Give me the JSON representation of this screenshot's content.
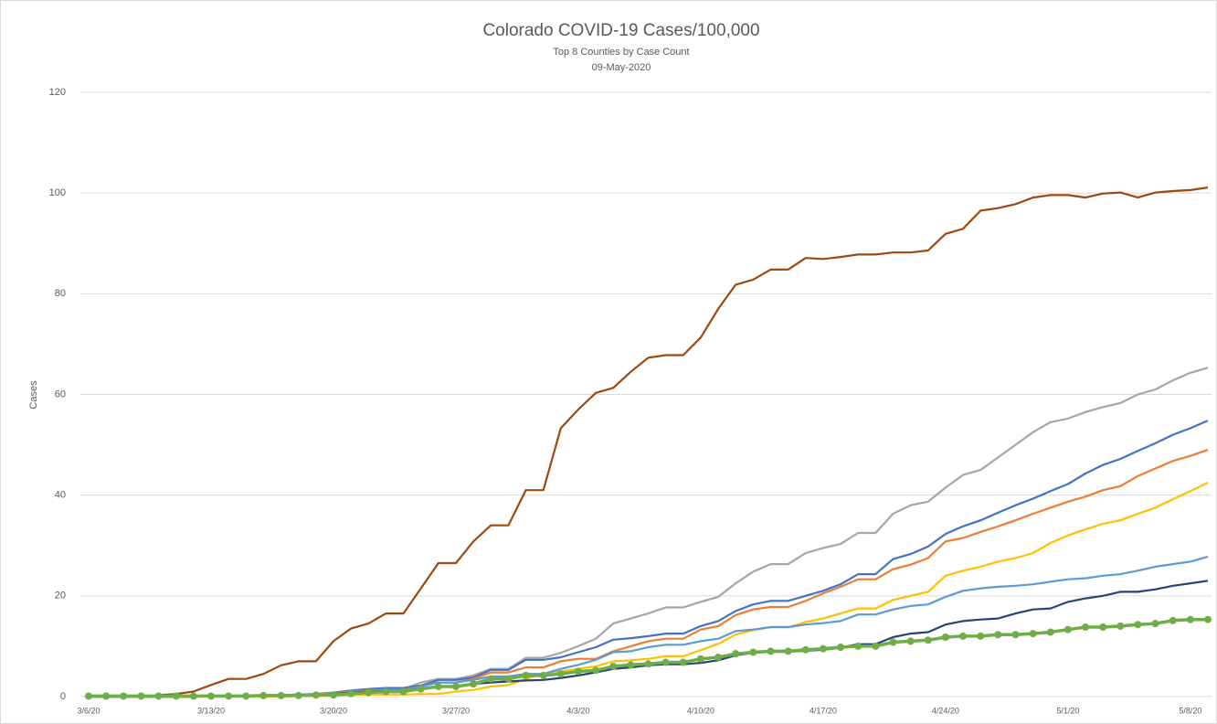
{
  "chart_data": {
    "type": "line",
    "title": "Colorado COVID-19 Cases/100,000",
    "subtitle": "Top 8 Counties by Case Count",
    "date": "09-May-2020",
    "y_label": "Cases",
    "categories": [
      "3/6/20",
      null,
      null,
      null,
      null,
      null,
      null,
      "3/13/20",
      null,
      null,
      null,
      null,
      null,
      null,
      "3/20/20",
      null,
      null,
      null,
      null,
      null,
      null,
      "3/27/20",
      null,
      null,
      null,
      null,
      null,
      null,
      "4/3/20",
      null,
      null,
      null,
      null,
      null,
      null,
      "4/10/20",
      null,
      null,
      null,
      null,
      null,
      null,
      "4/17/20",
      null,
      null,
      null,
      null,
      null,
      null,
      "4/24/20",
      null,
      null,
      null,
      null,
      null,
      null,
      "5/1/20",
      null,
      null,
      null,
      null,
      null,
      null,
      "5/8/20",
      null
    ],
    "ylim": [
      0,
      120
    ],
    "yticks": [
      0,
      20,
      40,
      60,
      80,
      100,
      120
    ],
    "grid": true,
    "series": [
      {
        "color": "#9e480e",
        "values": [
          null,
          null,
          null,
          null,
          0.3,
          0.5,
          1,
          2.3,
          3.5,
          3.5,
          4.5,
          6.2,
          7,
          7,
          11,
          13.5,
          14.5,
          16.5,
          16.5,
          21.5,
          26.5,
          26.5,
          30.8,
          34,
          34,
          41,
          41,
          53.3,
          57,
          60.3,
          61.3,
          64.5,
          67.3,
          67.8,
          67.8,
          71.3,
          77,
          81.8,
          82.8,
          84.8,
          84.8,
          87.1,
          86.9,
          87.3,
          87.8,
          87.8,
          88.2,
          88.2,
          88.6,
          91.9,
          92.9,
          96.5,
          97,
          97.8,
          99.1,
          99.6,
          99.6,
          99.1,
          99.9,
          100.1,
          99.1,
          100.1,
          100.4,
          100.6,
          101.1
        ]
      },
      {
        "color": "#a5a5a5",
        "values": [
          0,
          0,
          0,
          0,
          0,
          0,
          0,
          0.1,
          0.1,
          0.2,
          0.2,
          0.3,
          0.4,
          0.5,
          0.7,
          1,
          1.3,
          1.5,
          1.5,
          2.8,
          3.5,
          3.5,
          4.2,
          5.5,
          5.5,
          7.7,
          7.7,
          8.7,
          10,
          11.5,
          14.5,
          15.5,
          16.5,
          17.7,
          17.7,
          18.8,
          19.8,
          22.5,
          24.8,
          26.3,
          26.3,
          28.5,
          29.5,
          30.3,
          32.5,
          32.5,
          36.3,
          38,
          38.7,
          41.5,
          44,
          45,
          47.5,
          50,
          52.5,
          54.5,
          55.2,
          56.5,
          57.5,
          58.3,
          60,
          61,
          62.8,
          64.3,
          65.3
        ]
      },
      {
        "color": "#4472c4",
        "values": [
          0,
          0,
          0,
          0,
          0,
          0,
          0,
          0.1,
          0.1,
          0.2,
          0.3,
          0.3,
          0.4,
          0.5,
          0.8,
          1.2,
          1.5,
          1.7,
          1.7,
          2.2,
          3.3,
          3.3,
          3.8,
          5.3,
          5.3,
          7.3,
          7.3,
          7.8,
          8.8,
          9.8,
          11.3,
          11.6,
          12,
          12.5,
          12.5,
          14,
          15,
          17,
          18.3,
          19,
          19,
          20,
          21,
          22.3,
          24.3,
          24.3,
          27.3,
          28.3,
          29.8,
          32.3,
          33.8,
          35,
          36.5,
          38,
          39.3,
          40.8,
          42.2,
          44.3,
          46,
          47.2,
          48.8,
          50.3,
          52,
          53.3,
          54.8
        ]
      },
      {
        "color": "#ed7d31",
        "values": [
          0,
          0,
          0,
          0,
          0,
          0,
          0,
          0.1,
          0.1,
          0.1,
          0.2,
          0.2,
          0.3,
          0.4,
          0.7,
          1,
          1.2,
          1.4,
          1.4,
          2,
          2.8,
          2.8,
          3.5,
          4.8,
          4.8,
          5.8,
          5.8,
          7,
          7.5,
          7.5,
          9,
          10,
          11,
          11.5,
          11.5,
          13.3,
          14,
          16.2,
          17.3,
          17.8,
          17.8,
          19,
          20.5,
          21.8,
          23.3,
          23.3,
          25.3,
          26.2,
          27.5,
          30.8,
          31.5,
          32.7,
          33.8,
          35,
          36.3,
          37.5,
          38.7,
          39.7,
          41,
          41.8,
          43.8,
          45.3,
          46.8,
          47.8,
          49
        ]
      },
      {
        "color": "#ffc000",
        "values": [
          0,
          0,
          0,
          0,
          0,
          0,
          0,
          0,
          0,
          0,
          0,
          0,
          0.1,
          0.1,
          0.2,
          0.3,
          0.4,
          0.4,
          0.4,
          0.5,
          0.5,
          1,
          1.3,
          2,
          2.3,
          3.5,
          4.5,
          5,
          5.5,
          6,
          7,
          7.2,
          7.5,
          8,
          8,
          9.2,
          10.5,
          12.3,
          13.2,
          13.8,
          13.8,
          14.8,
          15.5,
          16.5,
          17.5,
          17.5,
          19.2,
          20,
          20.8,
          24,
          25,
          25.8,
          26.8,
          27.5,
          28.5,
          30.5,
          32,
          33.2,
          34.3,
          35,
          36.3,
          37.5,
          39.2,
          40.8,
          42.5
        ]
      },
      {
        "color": "#5b9bd5",
        "values": [
          0,
          0,
          0,
          0,
          0,
          0,
          0,
          0.1,
          0.1,
          0.1,
          0.2,
          0.2,
          0.2,
          0.3,
          0.6,
          0.9,
          1.1,
          1.3,
          1.3,
          2,
          2.8,
          2.8,
          3.3,
          4,
          4,
          4.5,
          4.5,
          5.5,
          6.3,
          7.3,
          8.8,
          9,
          9.8,
          10.3,
          10.3,
          11,
          11.5,
          13,
          13.3,
          13.8,
          13.8,
          14.3,
          14.6,
          15,
          16.3,
          16.3,
          17.3,
          18,
          18.3,
          19.8,
          21,
          21.5,
          21.8,
          22,
          22.3,
          22.8,
          23.3,
          23.5,
          24,
          24.3,
          25,
          25.8,
          26.3,
          26.8,
          27.8
        ]
      },
      {
        "color": "#264478",
        "values": [
          0,
          0,
          0,
          0,
          0,
          0,
          0,
          0.1,
          0.1,
          0.1,
          0.2,
          0.2,
          0.3,
          0.3,
          0.5,
          0.8,
          1,
          1.1,
          1.1,
          1.6,
          2,
          2.1,
          2.5,
          2.8,
          3,
          3.2,
          3.3,
          3.7,
          4.2,
          4.8,
          5.5,
          5.8,
          6.2,
          6.4,
          6.4,
          6.7,
          7.2,
          8.2,
          8.7,
          8.9,
          8.9,
          9.1,
          9.3,
          9.7,
          10.4,
          10.4,
          11.8,
          12.5,
          12.8,
          14.3,
          15,
          15.3,
          15.5,
          16.5,
          17.3,
          17.5,
          18.8,
          19.5,
          20,
          20.8,
          20.8,
          21.3,
          22,
          22.5,
          23
        ]
      },
      {
        "color": "#70ad47",
        "marker": "circle",
        "values": [
          0.1,
          0.1,
          0.1,
          0.1,
          0.1,
          0.1,
          0.1,
          0.1,
          0.1,
          0.1,
          0.2,
          0.2,
          0.2,
          0.3,
          0.3,
          0.6,
          0.8,
          1,
          1,
          1.5,
          2,
          2,
          2.5,
          3.5,
          3.5,
          4.2,
          4.2,
          4.5,
          5,
          5.2,
          6,
          6.3,
          6.5,
          6.8,
          6.8,
          7.5,
          7.8,
          8.5,
          8.8,
          9,
          9,
          9.3,
          9.5,
          9.8,
          10,
          10,
          10.8,
          11,
          11.2,
          11.8,
          12,
          12,
          12.3,
          12.3,
          12.5,
          12.8,
          13.3,
          13.8,
          13.8,
          14,
          14.3,
          14.5,
          15.1,
          15.3,
          15.3
        ]
      }
    ]
  }
}
